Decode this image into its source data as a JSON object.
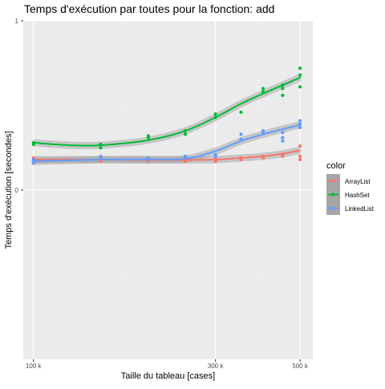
{
  "chart_data": {
    "type": "line",
    "title": "Temps d'exécution par toutes pour la fonction: add",
    "xlabel": "Taille du tableau [cases]",
    "ylabel": "Temps d'exécution [secondes]",
    "x_scale": "log",
    "xlim": [
      94000,
      540000
    ],
    "ylim": [
      -1.0,
      1.0
    ],
    "x_ticks": [
      {
        "value": 100000,
        "label": "100 k"
      },
      {
        "value": 300000,
        "label": "300 k"
      },
      {
        "value": 500000,
        "label": "500 k"
      }
    ],
    "y_ticks": [
      {
        "value": 0,
        "label": "0"
      },
      {
        "value": 1,
        "label": "1"
      }
    ],
    "grid": true,
    "legend": {
      "title": "color",
      "position": "right"
    },
    "series": [
      {
        "name": "ArrayList",
        "color": "#F8766D",
        "points": [
          [
            100000,
            0.17
          ],
          [
            100000,
            0.19
          ],
          [
            100000,
            0.16
          ],
          [
            150000,
            0.18
          ],
          [
            150000,
            0.17
          ],
          [
            200000,
            0.18
          ],
          [
            200000,
            0.17
          ],
          [
            250000,
            0.17
          ],
          [
            250000,
            0.18
          ],
          [
            300000,
            0.19
          ],
          [
            300000,
            0.17
          ],
          [
            350000,
            0.19
          ],
          [
            350000,
            0.18
          ],
          [
            400000,
            0.2
          ],
          [
            400000,
            0.19
          ],
          [
            450000,
            0.21
          ],
          [
            450000,
            0.2
          ],
          [
            500000,
            0.26
          ],
          [
            500000,
            0.2
          ],
          [
            500000,
            0.18
          ]
        ],
        "fit": [
          [
            100000,
            0.18
          ],
          [
            150000,
            0.18
          ],
          [
            200000,
            0.178
          ],
          [
            250000,
            0.178
          ],
          [
            300000,
            0.18
          ],
          [
            350000,
            0.19
          ],
          [
            400000,
            0.2
          ],
          [
            450000,
            0.215
          ],
          [
            500000,
            0.235
          ]
        ]
      },
      {
        "name": "HashSet",
        "color": "#00BA38",
        "points": [
          [
            100000,
            0.28
          ],
          [
            100000,
            0.27
          ],
          [
            150000,
            0.27
          ],
          [
            150000,
            0.25
          ],
          [
            200000,
            0.31
          ],
          [
            200000,
            0.32
          ],
          [
            250000,
            0.33
          ],
          [
            250000,
            0.35
          ],
          [
            300000,
            0.43
          ],
          [
            300000,
            0.45
          ],
          [
            350000,
            0.46
          ],
          [
            400000,
            0.6
          ],
          [
            400000,
            0.58
          ],
          [
            450000,
            0.62
          ],
          [
            450000,
            0.56
          ],
          [
            450000,
            0.6
          ],
          [
            500000,
            0.72
          ],
          [
            500000,
            0.68
          ],
          [
            500000,
            0.61
          ]
        ],
        "fit": [
          [
            100000,
            0.28
          ],
          [
            125000,
            0.265
          ],
          [
            150000,
            0.265
          ],
          [
            200000,
            0.295
          ],
          [
            250000,
            0.35
          ],
          [
            300000,
            0.43
          ],
          [
            350000,
            0.51
          ],
          [
            400000,
            0.57
          ],
          [
            450000,
            0.62
          ],
          [
            500000,
            0.665
          ]
        ]
      },
      {
        "name": "LinkedList",
        "color": "#619CFF",
        "points": [
          [
            100000,
            0.18
          ],
          [
            100000,
            0.17
          ],
          [
            100000,
            0.16
          ],
          [
            150000,
            0.2
          ],
          [
            150000,
            0.19
          ],
          [
            200000,
            0.19
          ],
          [
            200000,
            0.18
          ],
          [
            250000,
            0.2
          ],
          [
            250000,
            0.19
          ],
          [
            300000,
            0.21
          ],
          [
            300000,
            0.2
          ],
          [
            350000,
            0.33
          ],
          [
            350000,
            0.3
          ],
          [
            400000,
            0.34
          ],
          [
            400000,
            0.35
          ],
          [
            450000,
            0.34
          ],
          [
            450000,
            0.31
          ],
          [
            450000,
            0.29
          ],
          [
            500000,
            0.41
          ],
          [
            500000,
            0.39
          ],
          [
            500000,
            0.37
          ]
        ],
        "fit": [
          [
            100000,
            0.17
          ],
          [
            150000,
            0.18
          ],
          [
            200000,
            0.182
          ],
          [
            250000,
            0.185
          ],
          [
            300000,
            0.23
          ],
          [
            350000,
            0.29
          ],
          [
            400000,
            0.33
          ],
          [
            450000,
            0.36
          ],
          [
            500000,
            0.385
          ]
        ]
      }
    ]
  }
}
